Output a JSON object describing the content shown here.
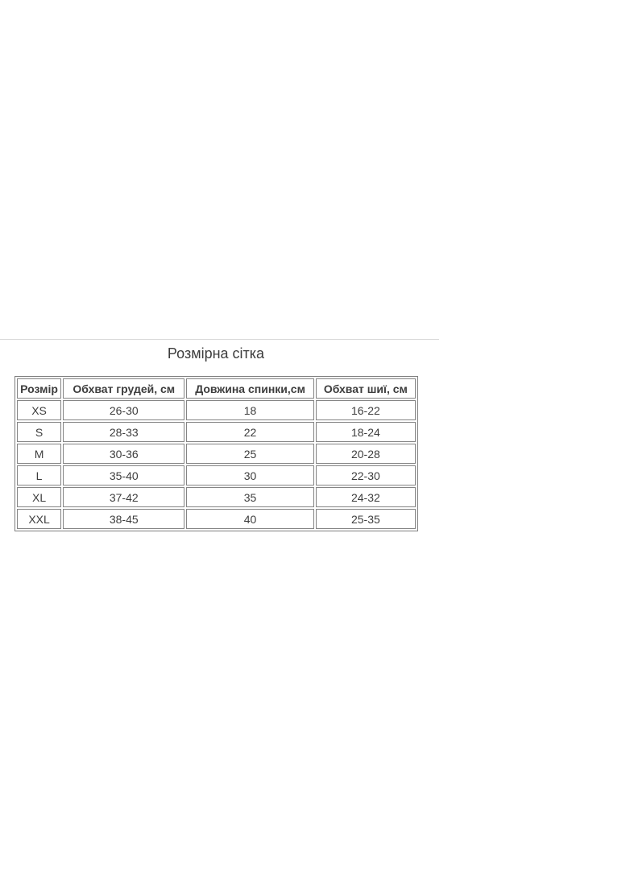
{
  "page": {
    "background_color": "#ffffff",
    "divider_color": "#d9d9d9",
    "title": "Розмірна сітка"
  },
  "table": {
    "border_color": "#848484",
    "text_color": "#3d3d3d",
    "columns": {
      "size": "Розмір",
      "chest": "Обхват грудей, см",
      "back": "Довжина спинки,см",
      "neck": "Обхват шиї, см"
    },
    "rows": [
      {
        "size": "XS",
        "chest": "26-30",
        "back": "18",
        "neck": "16-22"
      },
      {
        "size": "S",
        "chest": "28-33",
        "back": "22",
        "neck": "18-24"
      },
      {
        "size": "M",
        "chest": "30-36",
        "back": "25",
        "neck": "20-28"
      },
      {
        "size": "L",
        "chest": "35-40",
        "back": "30",
        "neck": "22-30"
      },
      {
        "size": "XL",
        "chest": "37-42",
        "back": "35",
        "neck": "24-32"
      },
      {
        "size": "XXL",
        "chest": "38-45",
        "back": "40",
        "neck": "25-35"
      }
    ]
  }
}
